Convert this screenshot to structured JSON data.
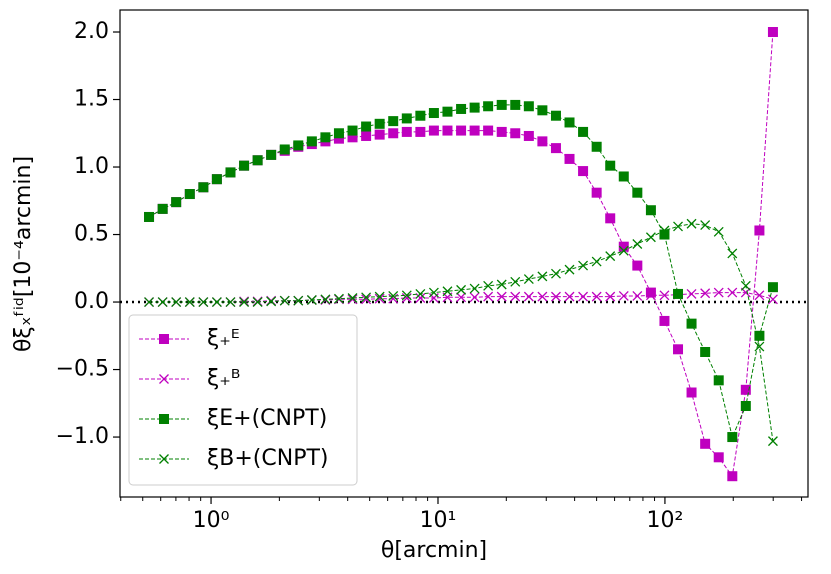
{
  "chart_data": {
    "type": "line",
    "xscale": "log",
    "xlabel": "θ[arcmin]",
    "ylabel": "θξₓᶠⁱᵈ[10⁻⁴arcmin]",
    "x": [
      0.533,
      0.612,
      0.702,
      0.806,
      0.925,
      1.061,
      1.218,
      1.398,
      1.604,
      1.84,
      2.112,
      2.423,
      2.781,
      3.191,
      3.661,
      4.202,
      4.822,
      5.533,
      6.349,
      7.287,
      8.362,
      9.594,
      11.01,
      12.64,
      14.5,
      16.63,
      19.09,
      21.9,
      25.14,
      28.84,
      33.1,
      37.98,
      43.58,
      50.02,
      57.4,
      65.86,
      75.58,
      86.74,
      99.52,
      114.2,
      131.0,
      150.4,
      172.6,
      198.1,
      227.2,
      260.8,
      299.2
    ],
    "series": [
      {
        "name": "ξ₊ᴱ",
        "color": "#bf00bf",
        "marker": "s",
        "values": [
          0.63,
          0.69,
          0.74,
          0.8,
          0.85,
          0.91,
          0.96,
          1.01,
          1.05,
          1.09,
          1.12,
          1.15,
          1.17,
          1.19,
          1.21,
          1.22,
          1.23,
          1.24,
          1.25,
          1.26,
          1.26,
          1.27,
          1.27,
          1.27,
          1.27,
          1.27,
          1.26,
          1.25,
          1.23,
          1.19,
          1.14,
          1.06,
          0.97,
          0.81,
          0.62,
          0.41,
          0.27,
          0.07,
          -0.14,
          -0.35,
          -0.67,
          -1.05,
          -1.15,
          -1.29,
          -0.65,
          0.53,
          2.0
        ]
      },
      {
        "name": "ξ₊ᴮ",
        "color": "#bf00bf",
        "marker": "x",
        "values": [
          0,
          0,
          0,
          0,
          0,
          0,
          0,
          0.005,
          0.005,
          0.01,
          0.01,
          0.01,
          0.015,
          0.015,
          0.02,
          0.02,
          0.02,
          0.025,
          0.025,
          0.03,
          0.03,
          0.03,
          0.035,
          0.035,
          0.035,
          0.04,
          0.04,
          0.04,
          0.04,
          0.04,
          0.04,
          0.04,
          0.04,
          0.04,
          0.04,
          0.045,
          0.045,
          0.05,
          0.05,
          0.055,
          0.06,
          0.065,
          0.07,
          0.07,
          0.07,
          0.05,
          0.02
        ]
      },
      {
        "name": "ξE+(CNPT)",
        "color": "#008000",
        "marker": "s",
        "values": [
          0.63,
          0.69,
          0.74,
          0.8,
          0.85,
          0.91,
          0.96,
          1.01,
          1.05,
          1.09,
          1.13,
          1.16,
          1.19,
          1.22,
          1.25,
          1.27,
          1.3,
          1.32,
          1.34,
          1.36,
          1.38,
          1.4,
          1.41,
          1.43,
          1.44,
          1.45,
          1.46,
          1.46,
          1.45,
          1.42,
          1.38,
          1.33,
          1.26,
          1.15,
          1.01,
          0.93,
          0.81,
          0.68,
          0.5,
          0.06,
          -0.16,
          -0.37,
          -0.58,
          -1.0,
          -0.77,
          -0.25,
          0.11
        ]
      },
      {
        "name": "ξB+(CNPT)",
        "color": "#008000",
        "marker": "x",
        "values": [
          0,
          0,
          0,
          0,
          0,
          0,
          0,
          0,
          0,
          0.005,
          0.01,
          0.01,
          0.015,
          0.02,
          0.025,
          0.03,
          0.035,
          0.04,
          0.045,
          0.05,
          0.06,
          0.07,
          0.08,
          0.09,
          0.1,
          0.12,
          0.13,
          0.15,
          0.17,
          0.19,
          0.21,
          0.24,
          0.27,
          0.3,
          0.34,
          0.38,
          0.43,
          0.48,
          0.53,
          0.56,
          0.58,
          0.57,
          0.52,
          0.36,
          0.12,
          -0.33,
          -1.03
        ]
      }
    ],
    "xlim": [
      0.397,
      427
    ],
    "ylim": [
      -1.444,
      2.163
    ],
    "xticks": [
      {
        "value": 1,
        "label": "10⁰"
      },
      {
        "value": 10,
        "label": "10¹"
      },
      {
        "value": 100,
        "label": "10²"
      }
    ],
    "xminor_ticks": [
      0.4,
      0.5,
      0.6,
      0.7,
      0.8,
      0.9,
      2,
      3,
      4,
      5,
      6,
      7,
      8,
      9,
      20,
      30,
      40,
      50,
      60,
      70,
      80,
      90,
      200,
      300,
      400
    ],
    "yticks": [
      {
        "value": -1,
        "label": "−1.0"
      },
      {
        "value": -0.5,
        "label": "−0.5"
      },
      {
        "value": 0,
        "label": "0.0"
      },
      {
        "value": 0.5,
        "label": "0.5"
      },
      {
        "value": 1,
        "label": "1.0"
      },
      {
        "value": 1.5,
        "label": "1.5"
      },
      {
        "value": 2,
        "label": "2.0"
      }
    ],
    "hline": 0,
    "legend": "lower left"
  }
}
